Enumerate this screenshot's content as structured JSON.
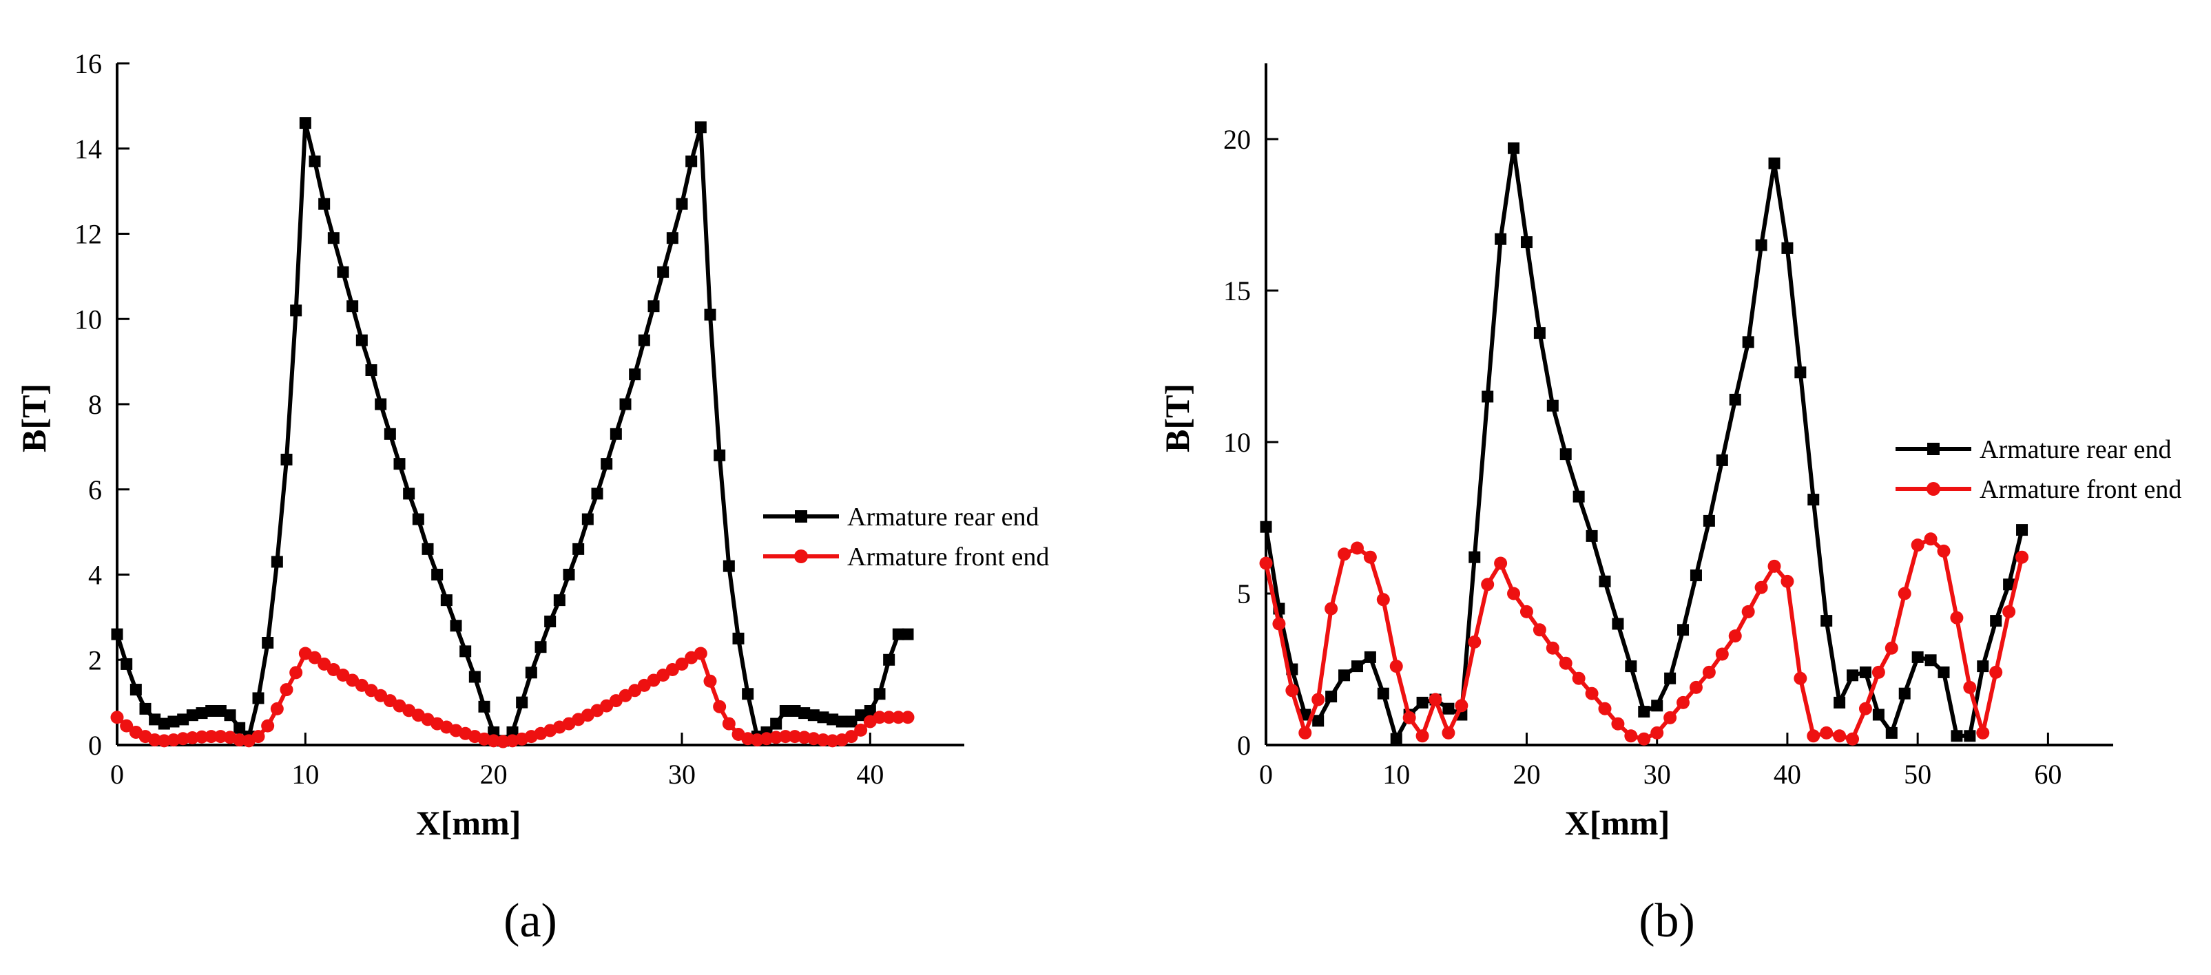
{
  "figure": {
    "panels": [
      "(a)",
      "(b)"
    ]
  },
  "chart_data": [
    {
      "panel_label": "a",
      "type": "line",
      "xlabel": "X[mm]",
      "ylabel": "B[T]",
      "xlim": [
        0,
        45
      ],
      "ylim": [
        0,
        16
      ],
      "xticks": [
        0,
        10,
        20,
        30,
        40
      ],
      "yticks": [
        0,
        2,
        4,
        6,
        8,
        10,
        12,
        14,
        16
      ],
      "grid": false,
      "legend_position": "center-right",
      "series": [
        {
          "name": "Armature rear end",
          "color": "#000000",
          "marker": "square",
          "x": [
            0,
            0.5,
            1,
            1.5,
            2,
            2.5,
            3,
            3.5,
            4,
            4.5,
            5,
            5.5,
            6,
            6.5,
            7,
            7.5,
            8,
            8.5,
            9,
            9.5,
            10,
            10.5,
            11,
            11.5,
            12,
            12.5,
            13,
            13.5,
            14,
            14.5,
            15,
            15.5,
            16,
            16.5,
            17,
            17.5,
            18,
            18.5,
            19,
            19.5,
            20,
            20.5,
            21,
            21.5,
            22,
            22.5,
            23,
            23.5,
            24,
            24.5,
            25,
            25.5,
            26,
            26.5,
            27,
            27.5,
            28,
            28.5,
            29,
            29.5,
            30,
            30.5,
            31,
            31.5,
            32,
            32.5,
            33,
            33.5,
            34,
            34.5,
            35,
            35.5,
            36,
            36.5,
            37,
            37.5,
            38,
            38.5,
            39,
            39.5,
            40,
            40.5,
            41,
            41.5,
            42
          ],
          "y": [
            2.6,
            1.9,
            1.3,
            0.85,
            0.6,
            0.5,
            0.55,
            0.6,
            0.7,
            0.75,
            0.8,
            0.8,
            0.7,
            0.4,
            0.2,
            1.1,
            2.4,
            4.3,
            6.7,
            10.2,
            14.6,
            13.7,
            12.7,
            11.9,
            11.1,
            10.3,
            9.5,
            8.8,
            8.0,
            7.3,
            6.6,
            5.9,
            5.3,
            4.6,
            4.0,
            3.4,
            2.8,
            2.2,
            1.6,
            0.9,
            0.3,
            0.1,
            0.3,
            1.0,
            1.7,
            2.3,
            2.9,
            3.4,
            4.0,
            4.6,
            5.3,
            5.9,
            6.6,
            7.3,
            8.0,
            8.7,
            9.5,
            10.3,
            11.1,
            11.9,
            12.7,
            13.7,
            14.5,
            10.1,
            6.8,
            4.2,
            2.5,
            1.2,
            0.2,
            0.3,
            0.5,
            0.8,
            0.8,
            0.75,
            0.7,
            0.65,
            0.6,
            0.55,
            0.55,
            0.7,
            0.8,
            1.2,
            2.0,
            2.6,
            2.6
          ]
        },
        {
          "name": "Armature front end",
          "color": "#ee1111",
          "marker": "circle",
          "x": [
            0,
            0.5,
            1,
            1.5,
            2,
            2.5,
            3,
            3.5,
            4,
            4.5,
            5,
            5.5,
            6,
            6.5,
            7,
            7.5,
            8,
            8.5,
            9,
            9.5,
            10,
            10.5,
            11,
            11.5,
            12,
            12.5,
            13,
            13.5,
            14,
            14.5,
            15,
            15.5,
            16,
            16.5,
            17,
            17.5,
            18,
            18.5,
            19,
            19.5,
            20,
            20.5,
            21,
            21.5,
            22,
            22.5,
            23,
            23.5,
            24,
            24.5,
            25,
            25.5,
            26,
            26.5,
            27,
            27.5,
            28,
            28.5,
            29,
            29.5,
            30,
            30.5,
            31,
            31.5,
            32,
            32.5,
            33,
            33.5,
            34,
            34.5,
            35,
            35.5,
            36,
            36.5,
            37,
            37.5,
            38,
            38.5,
            39,
            39.5,
            40,
            40.5,
            41,
            41.5,
            42
          ],
          "y": [
            0.65,
            0.45,
            0.3,
            0.2,
            0.12,
            0.1,
            0.12,
            0.15,
            0.17,
            0.19,
            0.2,
            0.2,
            0.18,
            0.12,
            0.1,
            0.2,
            0.45,
            0.85,
            1.3,
            1.7,
            2.15,
            2.05,
            1.9,
            1.77,
            1.64,
            1.52,
            1.4,
            1.28,
            1.16,
            1.04,
            0.92,
            0.81,
            0.7,
            0.6,
            0.5,
            0.42,
            0.34,
            0.27,
            0.2,
            0.14,
            0.1,
            0.08,
            0.1,
            0.14,
            0.2,
            0.27,
            0.34,
            0.42,
            0.5,
            0.6,
            0.7,
            0.81,
            0.92,
            1.04,
            1.16,
            1.28,
            1.4,
            1.52,
            1.64,
            1.77,
            1.9,
            2.05,
            2.15,
            1.5,
            0.9,
            0.5,
            0.25,
            0.15,
            0.12,
            0.15,
            0.18,
            0.2,
            0.2,
            0.18,
            0.15,
            0.12,
            0.1,
            0.12,
            0.2,
            0.35,
            0.55,
            0.65,
            0.65,
            0.65,
            0.65
          ]
        }
      ]
    },
    {
      "panel_label": "b",
      "type": "line",
      "xlabel": "X[mm]",
      "ylabel": "B[T]",
      "xlim": [
        0,
        65
      ],
      "ylim": [
        0,
        22.5
      ],
      "xticks": [
        0,
        10,
        20,
        30,
        40,
        50,
        60
      ],
      "yticks": [
        0,
        5,
        10,
        15,
        20
      ],
      "grid": false,
      "legend_position": "center-right",
      "series": [
        {
          "name": "Armature rear end",
          "color": "#000000",
          "marker": "square",
          "x": [
            0,
            1,
            2,
            3,
            4,
            5,
            6,
            7,
            8,
            9,
            10,
            11,
            12,
            13,
            14,
            15,
            16,
            17,
            18,
            19,
            20,
            21,
            22,
            23,
            24,
            25,
            26,
            27,
            28,
            29,
            30,
            31,
            32,
            33,
            34,
            35,
            36,
            37,
            38,
            39,
            40,
            41,
            42,
            43,
            44,
            45,
            46,
            47,
            48,
            49,
            50,
            51,
            52,
            53,
            54,
            55,
            56,
            57,
            58
          ],
          "y": [
            7.2,
            4.5,
            2.5,
            1.0,
            0.8,
            1.6,
            2.3,
            2.6,
            2.9,
            1.7,
            0.2,
            1.0,
            1.4,
            1.5,
            1.2,
            1.0,
            6.2,
            11.5,
            16.7,
            19.7,
            16.6,
            13.6,
            11.2,
            9.6,
            8.2,
            6.9,
            5.4,
            4.0,
            2.6,
            1.1,
            1.3,
            2.2,
            3.8,
            5.6,
            7.4,
            9.4,
            11.4,
            13.3,
            16.5,
            19.2,
            16.4,
            12.3,
            8.1,
            4.1,
            1.4,
            2.3,
            2.4,
            1.0,
            0.4,
            1.7,
            2.9,
            2.8,
            2.4,
            0.3,
            0.3,
            2.6,
            4.1,
            5.3,
            7.1
          ]
        },
        {
          "name": "Armature front end",
          "color": "#ee1111",
          "marker": "circle",
          "x": [
            0,
            1,
            2,
            3,
            4,
            5,
            6,
            7,
            8,
            9,
            10,
            11,
            12,
            13,
            14,
            15,
            16,
            17,
            18,
            19,
            20,
            21,
            22,
            23,
            24,
            25,
            26,
            27,
            28,
            29,
            30,
            31,
            32,
            33,
            34,
            35,
            36,
            37,
            38,
            39,
            40,
            41,
            42,
            43,
            44,
            45,
            46,
            47,
            48,
            49,
            50,
            51,
            52,
            53,
            54,
            55,
            56,
            57,
            58
          ],
          "y": [
            6.0,
            4.0,
            1.8,
            0.4,
            1.5,
            4.5,
            6.3,
            6.5,
            6.2,
            4.8,
            2.6,
            0.9,
            0.3,
            1.5,
            0.4,
            1.3,
            3.4,
            5.3,
            6.0,
            5.0,
            4.4,
            3.8,
            3.2,
            2.7,
            2.2,
            1.7,
            1.2,
            0.7,
            0.3,
            0.2,
            0.4,
            0.9,
            1.4,
            1.9,
            2.4,
            3.0,
            3.6,
            4.4,
            5.2,
            5.9,
            5.4,
            2.2,
            0.3,
            0.4,
            0.3,
            0.2,
            1.2,
            2.4,
            3.2,
            5.0,
            6.6,
            6.8,
            6.4,
            4.2,
            1.9,
            0.4,
            2.4,
            4.4,
            6.2
          ]
        }
      ]
    }
  ]
}
